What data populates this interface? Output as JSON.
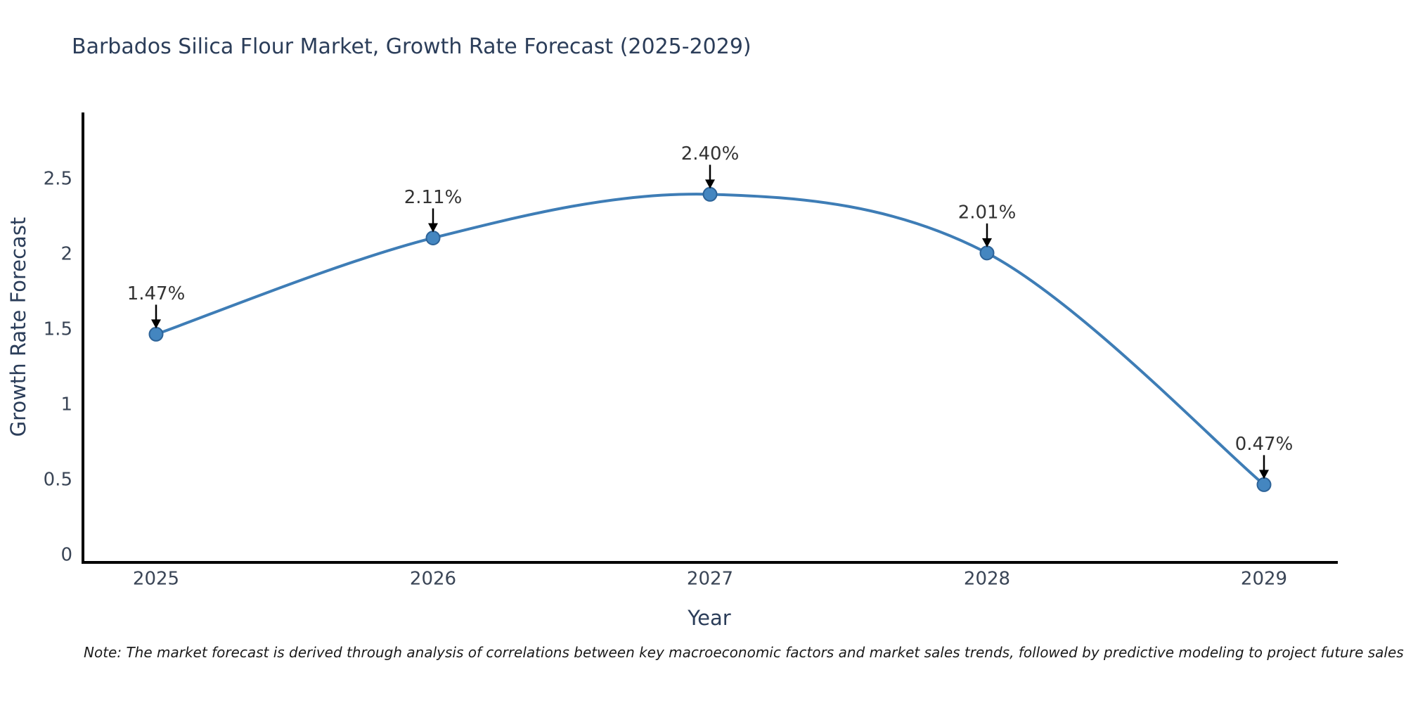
{
  "chart_data": {
    "type": "line",
    "title": "Barbados Silica Flour Market, Growth Rate Forecast (2025-2029)",
    "x": [
      2025,
      2026,
      2027,
      2028,
      2029
    ],
    "values": [
      1.47,
      2.11,
      2.4,
      2.01,
      0.47
    ],
    "point_labels": [
      "1.47%",
      "2.11%",
      "2.40%",
      "2.01%",
      "0.47%"
    ],
    "xlabel": "Year",
    "ylabel": "Growth Rate Forecast",
    "y_ticks": [
      0,
      0.5,
      1,
      1.5,
      2,
      2.5
    ],
    "ylim": [
      0,
      2.95
    ],
    "grid": false,
    "legend": "none",
    "line_shape": "spline",
    "annotation_style": "down-arrow",
    "colors": {
      "line": "#3e7db6",
      "marker_fill": "#4486c0",
      "marker_edge": "#2d6398",
      "axis": "#000000",
      "arrow": "#000000",
      "title_text": "#2b3d59",
      "tick_text": "#3a4556",
      "label_text": "#333333",
      "note_text": "#1a1a1a"
    }
  },
  "note": "Note: The market forecast is derived through analysis of correlations between key macroeconomic factors and market sales trends, followed by predictive modeling to project future sales"
}
